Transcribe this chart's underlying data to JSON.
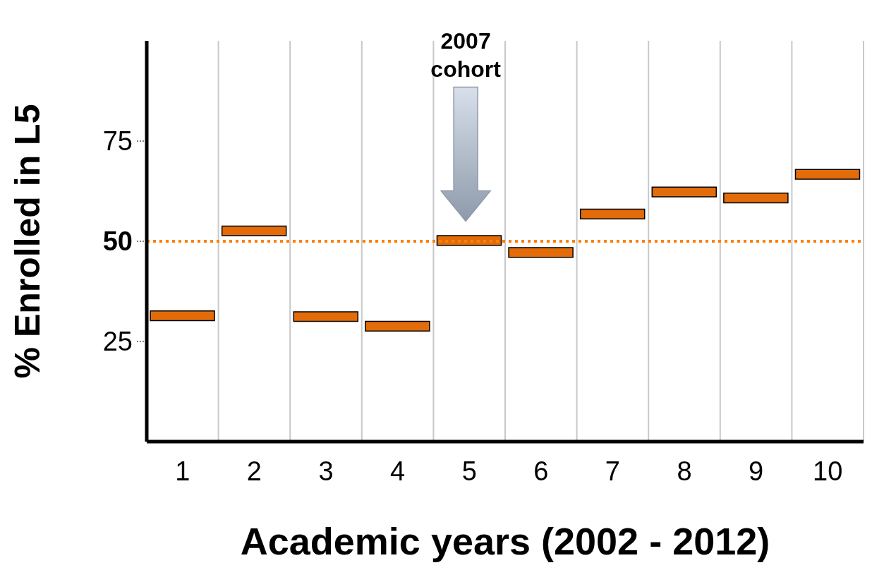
{
  "chart_data": {
    "type": "bar",
    "xlabel": "Academic years (2002 - 2012)",
    "ylabel": "% Enrolled in L5",
    "categories": [
      "1",
      "2",
      "3",
      "4",
      "5",
      "6",
      "7",
      "8",
      "9",
      "10"
    ],
    "base": [
      30.2,
      51.4,
      30.0,
      27.6,
      49.0,
      46.0,
      55.6,
      61.1,
      59.6,
      65.5
    ],
    "values": [
      2.4,
      2.4,
      2.4,
      2.4,
      2.4,
      2.4,
      2.4,
      2.4,
      2.4,
      2.4
    ],
    "color": "#e36c0a",
    "ylim": [
      0,
      100
    ],
    "yticks": [
      25,
      50,
      75
    ],
    "grid": "x",
    "ref_lines": [
      {
        "axis": "y",
        "value": 50,
        "color": "#ff8000",
        "line_style": "dotted"
      }
    ],
    "annotations": [
      "2007 cohort"
    ]
  }
}
